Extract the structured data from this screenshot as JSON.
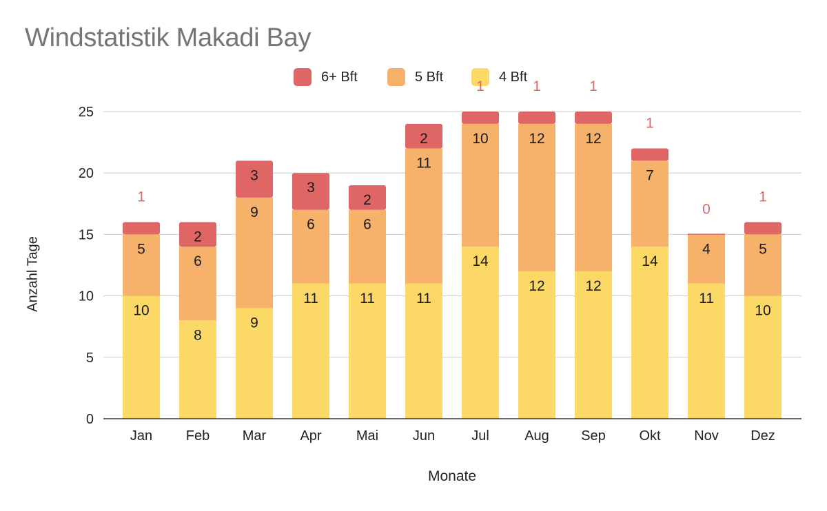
{
  "chart_data": {
    "type": "bar",
    "stacked": true,
    "title": "Windstatistik Makadi Bay",
    "xlabel": "Monate",
    "ylabel": "Anzahl Tage",
    "ylim": [
      0,
      25
    ],
    "yticks": [
      0,
      5,
      10,
      15,
      20,
      25
    ],
    "grid": true,
    "legend_position": "top",
    "categories": [
      "Jan",
      "Feb",
      "Mar",
      "Apr",
      "Mai",
      "Jun",
      "Jul",
      "Aug",
      "Sep",
      "Okt",
      "Nov",
      "Dez"
    ],
    "series": [
      {
        "name": "4 Bft",
        "color": "#fcd966",
        "values": [
          10,
          8,
          9,
          11,
          11,
          11,
          14,
          12,
          12,
          14,
          11,
          10
        ]
      },
      {
        "name": "5 Bft",
        "color": "#f6b26b",
        "values": [
          5,
          6,
          9,
          6,
          6,
          11,
          10,
          12,
          12,
          7,
          4,
          5
        ]
      },
      {
        "name": "6+ Bft",
        "color": "#e06666",
        "values": [
          1,
          2,
          3,
          3,
          2,
          2,
          1,
          1,
          1,
          1,
          0,
          1
        ]
      }
    ],
    "legend_order": [
      "6+ Bft",
      "5 Bft",
      "4 Bft"
    ]
  }
}
